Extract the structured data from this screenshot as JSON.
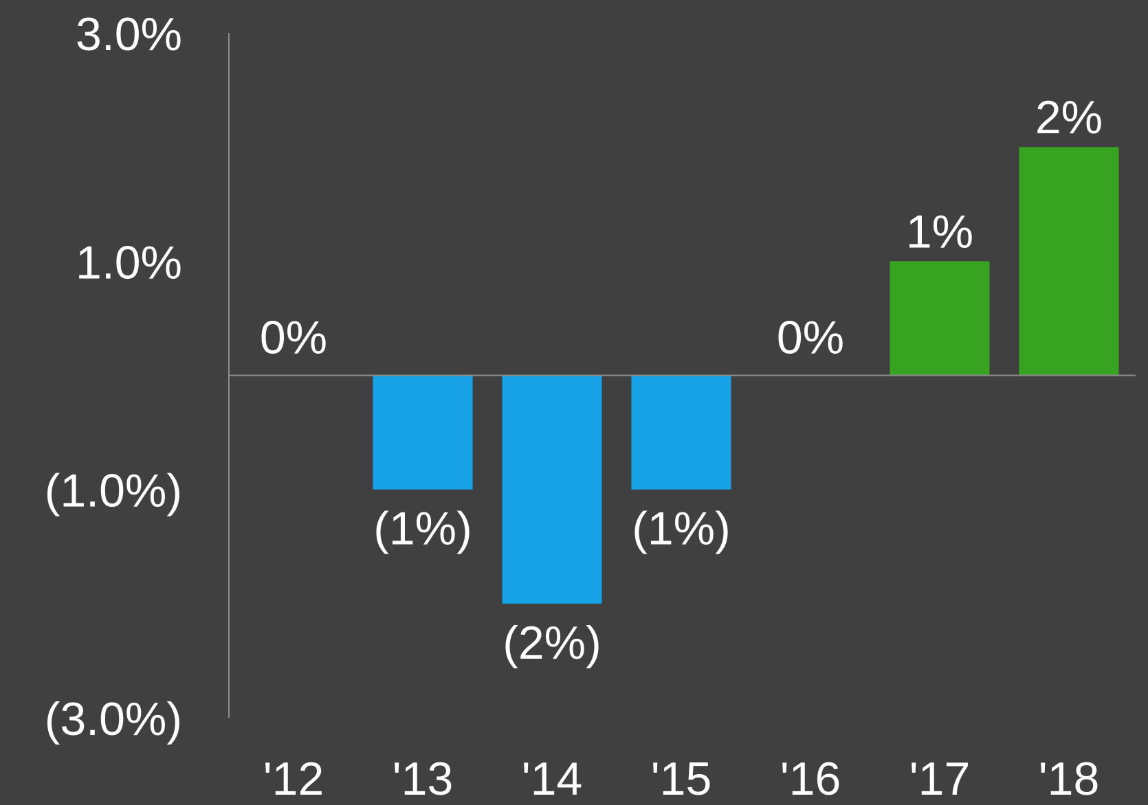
{
  "chart_data": {
    "type": "bar",
    "title": "",
    "xlabel": "",
    "ylabel": "",
    "categories": [
      "'12",
      "'13",
      "'14",
      "'15",
      "'16",
      "'17",
      "'18"
    ],
    "values": [
      0,
      -1,
      -2,
      -1,
      0,
      1,
      2
    ],
    "data_labels": [
      "0%",
      "(1%)",
      "(2%)",
      "(1%)",
      "0%",
      "1%",
      "2%"
    ],
    "y_ticks": [
      3,
      1,
      -1,
      -3
    ],
    "y_tick_labels": [
      "3.0%",
      "1.0%",
      "(1.0%)",
      "(3.0%)"
    ],
    "ylim": [
      -3,
      3
    ],
    "grid": false,
    "legend": "none"
  },
  "colors": {
    "background": "#404040",
    "negative_bar": "#17A2E8",
    "positive_bar": "#38A321",
    "text": "#FFFFFF",
    "axis": "#8C8C8C"
  }
}
